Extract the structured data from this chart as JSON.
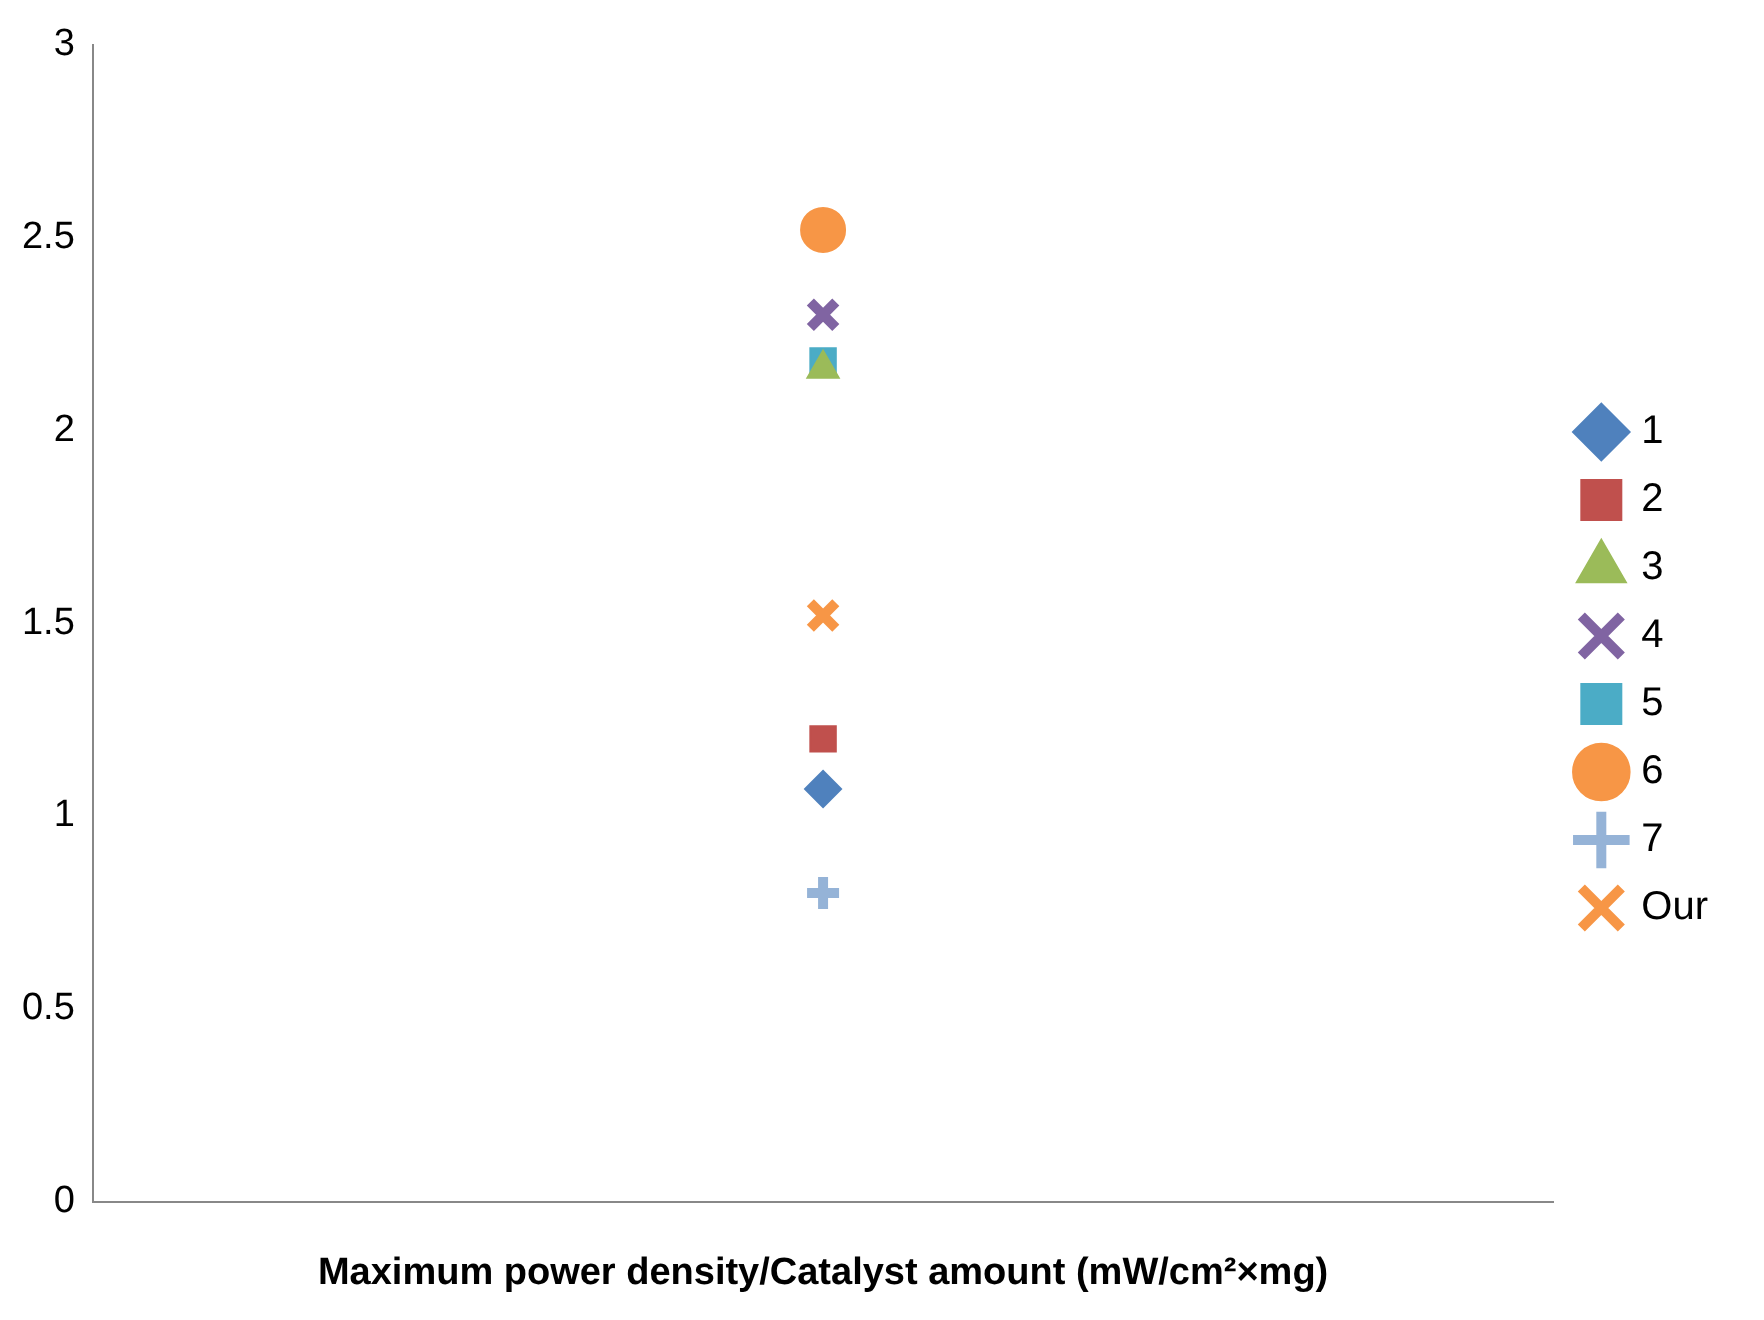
{
  "chart_data": {
    "type": "scatter",
    "xlabel": "Maximum power density/Catalyst amount (mW/cm²×mg)",
    "categories": [
      null
    ],
    "ylim": [
      0,
      3
    ],
    "yticks": [
      0,
      0.5,
      1,
      1.5,
      2,
      2.5,
      3
    ],
    "grid": false,
    "legend": "right",
    "series": [
      {
        "name": "1",
        "color": "#4f81bd",
        "marker": "diamond",
        "values": [
          1.07
        ]
      },
      {
        "name": "2",
        "color": "#c0504d",
        "marker": "square",
        "values": [
          1.2
        ]
      },
      {
        "name": "3",
        "color": "#9bbb59",
        "marker": "triangle",
        "values": [
          2.16
        ]
      },
      {
        "name": "4",
        "color": "#8064a2",
        "marker": "cross",
        "values": [
          2.3
        ]
      },
      {
        "name": "5",
        "color": "#4bacc6",
        "marker": "square",
        "values": [
          2.18
        ]
      },
      {
        "name": "6",
        "color": "#f79646",
        "marker": "circle",
        "values": [
          2.52
        ]
      },
      {
        "name": "7",
        "color": "#95b3d7",
        "marker": "plus",
        "values": [
          0.8
        ]
      },
      {
        "name": "Our",
        "color": "#f79646",
        "marker": "cross",
        "values": [
          1.52
        ]
      }
    ]
  }
}
